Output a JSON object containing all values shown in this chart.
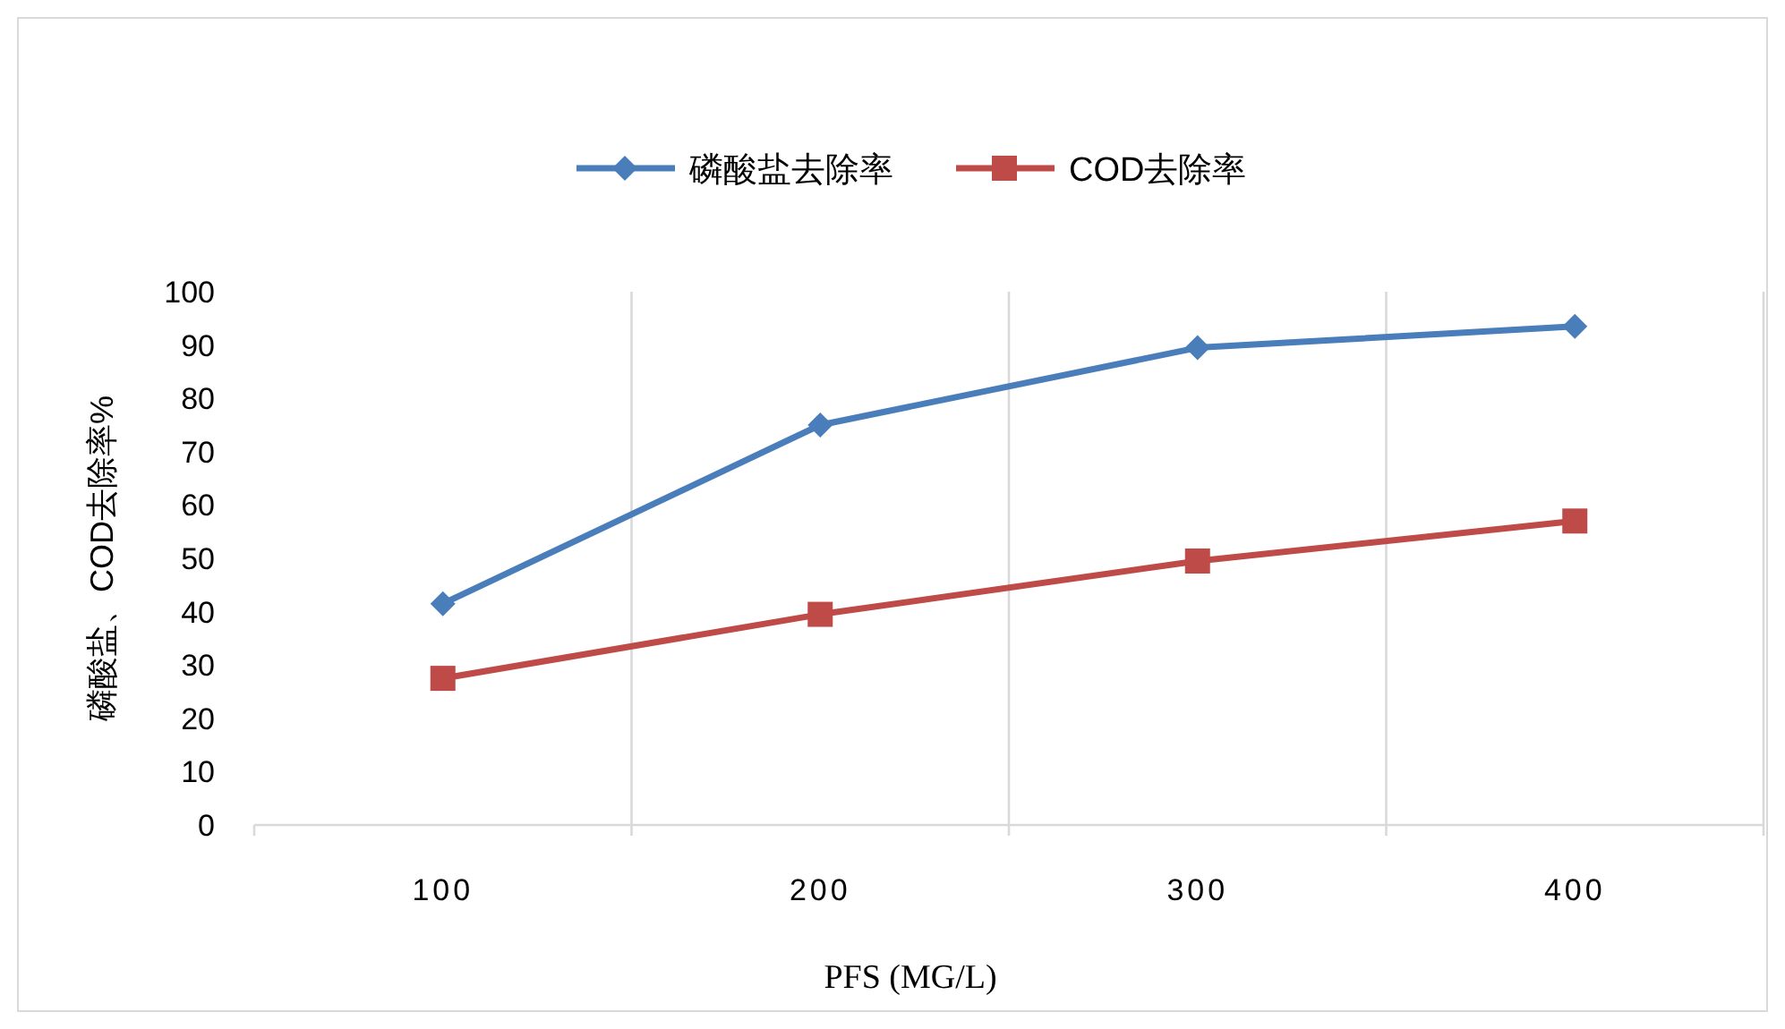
{
  "chart_data": {
    "type": "line",
    "xlabel": "PFS (MG/L)",
    "ylabel": "磷酸盐、COD去除率%",
    "categories": [
      "100",
      "200",
      "300",
      "400"
    ],
    "series": [
      {
        "name": "磷酸盐去除率",
        "color": "#4a7ebb",
        "marker": "diamond",
        "values": [
          41.5,
          75,
          89.5,
          93.5
        ]
      },
      {
        "name": "COD去除率",
        "color": "#be4b48",
        "marker": "square",
        "values": [
          27.5,
          39.5,
          49.5,
          57
        ]
      }
    ],
    "ylim": [
      0,
      100
    ],
    "yticks": [
      0,
      10,
      20,
      30,
      40,
      50,
      60,
      70,
      80,
      90,
      100
    ],
    "grid": "x",
    "legend": "top",
    "line_style": "solid"
  }
}
